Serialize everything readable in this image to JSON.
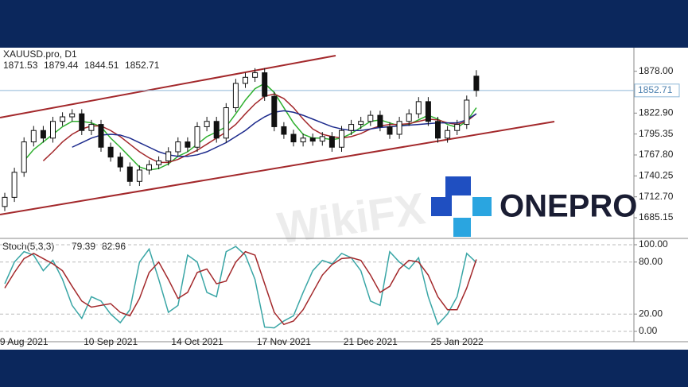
{
  "chart_data": [
    {
      "type": "candlestick",
      "title": "XAUUSD.pro, D1",
      "open": [
        1700,
        1712,
        1745,
        1785,
        1800,
        1790,
        1812,
        1818,
        1822,
        1800,
        1808,
        1778,
        1765,
        1752,
        1733,
        1748,
        1755,
        1760,
        1772,
        1785,
        1778,
        1805,
        1812,
        1790,
        1830,
        1862,
        1870,
        1876,
        1845,
        1805,
        1795,
        1785,
        1790,
        1786,
        1792,
        1778,
        1800,
        1808,
        1812,
        1820,
        1805,
        1795,
        1812,
        1822,
        1838,
        1812,
        1790,
        1800,
        1808,
        1871.53
      ],
      "high": [
        1718,
        1751,
        1791,
        1806,
        1806,
        1818,
        1824,
        1828,
        1828,
        1814,
        1814,
        1784,
        1771,
        1758,
        1754,
        1761,
        1766,
        1778,
        1791,
        1791,
        1811,
        1818,
        1818,
        1836,
        1868,
        1876,
        1882,
        1882,
        1851,
        1811,
        1801,
        1796,
        1796,
        1798,
        1798,
        1806,
        1814,
        1818,
        1826,
        1826,
        1811,
        1818,
        1828,
        1844,
        1844,
        1818,
        1806,
        1814,
        1846,
        1879.44
      ],
      "low": [
        1694,
        1706,
        1739,
        1779,
        1784,
        1784,
        1806,
        1812,
        1794,
        1794,
        1772,
        1759,
        1746,
        1727,
        1727,
        1742,
        1749,
        1754,
        1766,
        1772,
        1772,
        1799,
        1784,
        1784,
        1824,
        1856,
        1864,
        1839,
        1799,
        1789,
        1779,
        1779,
        1780,
        1780,
        1772,
        1772,
        1794,
        1802,
        1806,
        1799,
        1789,
        1789,
        1806,
        1816,
        1806,
        1784,
        1784,
        1794,
        1802,
        1844.51
      ],
      "close": [
        1712,
        1745,
        1785,
        1800,
        1790,
        1812,
        1818,
        1822,
        1800,
        1808,
        1778,
        1765,
        1752,
        1733,
        1748,
        1755,
        1760,
        1772,
        1785,
        1778,
        1805,
        1812,
        1790,
        1830,
        1862,
        1870,
        1876,
        1845,
        1805,
        1795,
        1785,
        1790,
        1786,
        1792,
        1778,
        1800,
        1808,
        1812,
        1820,
        1805,
        1795,
        1812,
        1822,
        1838,
        1812,
        1790,
        1800,
        1808,
        1840,
        1852.71
      ],
      "series": [
        {
          "color": "#2fb02f",
          "values": [
            null,
            null,
            1760,
            1775,
            1785,
            1795,
            1805,
            1812,
            1812,
            1810,
            1805,
            1790,
            1778,
            1765,
            1752,
            1748,
            1750,
            1756,
            1766,
            1772,
            1782,
            1792,
            1798,
            1805,
            1822,
            1840,
            1855,
            1862,
            1850,
            1830,
            1810,
            1795,
            1790,
            1790,
            1788,
            1790,
            1796,
            1804,
            1812,
            1814,
            1810,
            1806,
            1808,
            1814,
            1820,
            1815,
            1808,
            1804,
            1812,
            1830
          ]
        },
        {
          "color": "#a3282b",
          "values": [
            null,
            null,
            null,
            null,
            1760,
            1772,
            1785,
            1795,
            1802,
            1806,
            1806,
            1800,
            1792,
            1782,
            1772,
            1764,
            1758,
            1758,
            1762,
            1768,
            1774,
            1782,
            1790,
            1798,
            1808,
            1822,
            1835,
            1845,
            1848,
            1842,
            1830,
            1815,
            1802,
            1795,
            1792,
            1790,
            1792,
            1796,
            1802,
            1806,
            1808,
            1808,
            1809,
            1812,
            1815,
            1814,
            1810,
            1808,
            1812,
            1822
          ]
        },
        {
          "color": "#1c2a8c",
          "values": [
            null,
            null,
            null,
            null,
            null,
            null,
            null,
            1778,
            1784,
            1790,
            1794,
            1795,
            1794,
            1790,
            1784,
            1778,
            1772,
            1768,
            1766,
            1766,
            1768,
            1772,
            1778,
            1784,
            1792,
            1800,
            1810,
            1818,
            1824,
            1826,
            1824,
            1820,
            1815,
            1810,
            1805,
            1802,
            1800,
            1800,
            1802,
            1804,
            1805,
            1806,
            1807,
            1808,
            1809,
            1810,
            1810,
            1810,
            1814,
            1822
          ]
        }
      ],
      "ylim": [
        1658,
        1909
      ],
      "yticks": [
        {
          "value": 1685.15,
          "label": "1685.15"
        },
        {
          "value": 1712.7,
          "label": "1712.70"
        },
        {
          "value": 1740.25,
          "label": "1740.25"
        },
        {
          "value": 1767.8,
          "label": "1767.80"
        },
        {
          "value": 1795.35,
          "label": "1795.35"
        },
        {
          "value": 1822.9,
          "label": "1822.90"
        },
        {
          "value": 1878,
          "label": "1878.00"
        }
      ],
      "logo": "ONEPRO",
      "watermark": "WikiFX"
    },
    {
      "type": "line",
      "title": "Stoch(5,3,3)",
      "categories": [
        null,
        null,
        "9 Aug 2021",
        null,
        null,
        null,
        null,
        null,
        null,
        null,
        null,
        "10 Sep 2021",
        null,
        null,
        null,
        null,
        null,
        null,
        null,
        null,
        "14 Oct 2021",
        null,
        null,
        null,
        null,
        null,
        null,
        null,
        null,
        "17 Nov 2021",
        null,
        null,
        null,
        null,
        null,
        null,
        null,
        null,
        "21 Dec 2021",
        null,
        null,
        null,
        null,
        null,
        null,
        null,
        null,
        "25 Jan 2022",
        null,
        null
      ],
      "series": [
        {
          "color": "#3aa6a6",
          "values": [
            55,
            80,
            92,
            88,
            70,
            82,
            60,
            30,
            15,
            40,
            35,
            20,
            10,
            25,
            80,
            95,
            60,
            22,
            30,
            88,
            80,
            45,
            40,
            92,
            98,
            88,
            60,
            5,
            4,
            12,
            18,
            45,
            70,
            82,
            78,
            90,
            85,
            70,
            35,
            30,
            92,
            80,
            72,
            85,
            40,
            8,
            20,
            40,
            90,
            79.39
          ]
        },
        {
          "color": "#a3282b",
          "values": [
            50,
            68,
            84,
            90,
            84,
            78,
            70,
            52,
            35,
            28,
            30,
            32,
            22,
            18,
            38,
            68,
            80,
            60,
            38,
            45,
            68,
            72,
            55,
            58,
            80,
            92,
            88,
            55,
            22,
            8,
            12,
            25,
            45,
            65,
            77,
            84,
            85,
            82,
            65,
            45,
            52,
            72,
            82,
            80,
            65,
            40,
            25,
            25,
            50,
            82.96
          ]
        }
      ],
      "ylim": [
        -11.9,
        107.3
      ],
      "yticks": [
        {
          "value": 0,
          "label": "0.00"
        },
        {
          "value": 20,
          "label": "20.00"
        },
        {
          "value": 80,
          "label": "80.00"
        },
        {
          "value": 100,
          "label": "100.00"
        }
      ]
    }
  ]
}
